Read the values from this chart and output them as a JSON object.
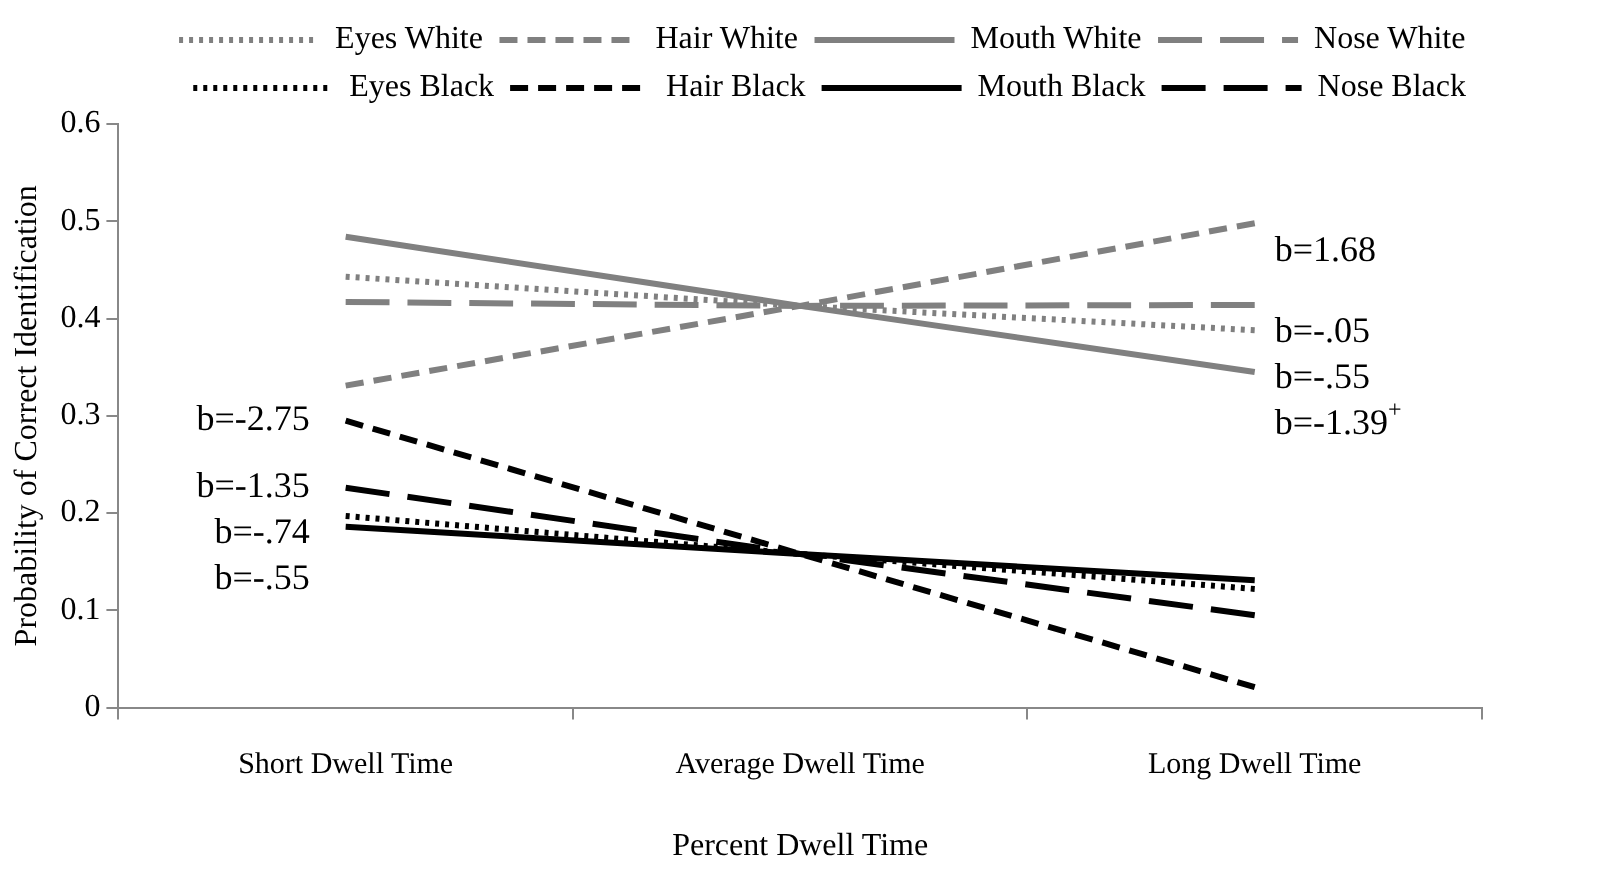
{
  "chart_data": {
    "type": "line",
    "xlabel": "Percent Dwell Time",
    "ylabel": "Probability of Correct Identification",
    "categories": [
      "Short Dwell Time",
      "Average Dwell Time",
      "Long Dwell Time"
    ],
    "series": [
      {
        "name": "Eyes White",
        "color": "#808080",
        "line_style": "dotted",
        "values": [
          0.443,
          0.413,
          0.388
        ]
      },
      {
        "name": "Hair White",
        "color": "#808080",
        "line_style": "dashed",
        "values": [
          0.331,
          0.413,
          0.498
        ]
      },
      {
        "name": "Mouth White",
        "color": "#808080",
        "line_style": "solid",
        "values": [
          0.484,
          0.413,
          0.345
        ]
      },
      {
        "name": "Nose White",
        "color": "#808080",
        "line_style": "longdash",
        "values": [
          0.417,
          0.413,
          0.414
        ]
      },
      {
        "name": "Eyes Black",
        "color": "#000000",
        "line_style": "dotted",
        "values": [
          0.197,
          0.158,
          0.122
        ]
      },
      {
        "name": "Hair Black",
        "color": "#000000",
        "line_style": "dashed",
        "values": [
          0.295,
          0.158,
          0.021
        ]
      },
      {
        "name": "Mouth Black",
        "color": "#000000",
        "line_style": "solid",
        "values": [
          0.186,
          0.158,
          0.131
        ]
      },
      {
        "name": "Nose Black",
        "color": "#000000",
        "line_style": "longdash",
        "values": [
          0.226,
          0.158,
          0.095
        ]
      }
    ],
    "ylim": [
      0,
      0.6
    ],
    "yticks": [
      0,
      0.1,
      0.2,
      0.3,
      0.4,
      0.5,
      0.6
    ],
    "grid": false,
    "legend": "top",
    "marker": "none",
    "annotations": [
      {
        "text": "b=1.68",
        "x": "Long Dwell Time",
        "y": 0.498
      },
      {
        "text": "b=-.05",
        "x": "Long Dwell Time",
        "y": 0.414
      },
      {
        "text": "b=-.55",
        "x": "Long Dwell Time",
        "y": 0.388
      },
      {
        "text": "b=-1.39$^{+}$",
        "x": "Long Dwell Time",
        "y": 0.345
      },
      {
        "text": "b=-2.75",
        "x": "Short Dwell Time",
        "y": 0.295
      },
      {
        "text": "b=-1.35",
        "x": "Short Dwell Time",
        "y": 0.226
      },
      {
        "text": "b=-.74",
        "x": "Short Dwell Time",
        "y": 0.197
      },
      {
        "text": "b=-.55",
        "x": "Short Dwell Time",
        "y": 0.186
      }
    ]
  }
}
